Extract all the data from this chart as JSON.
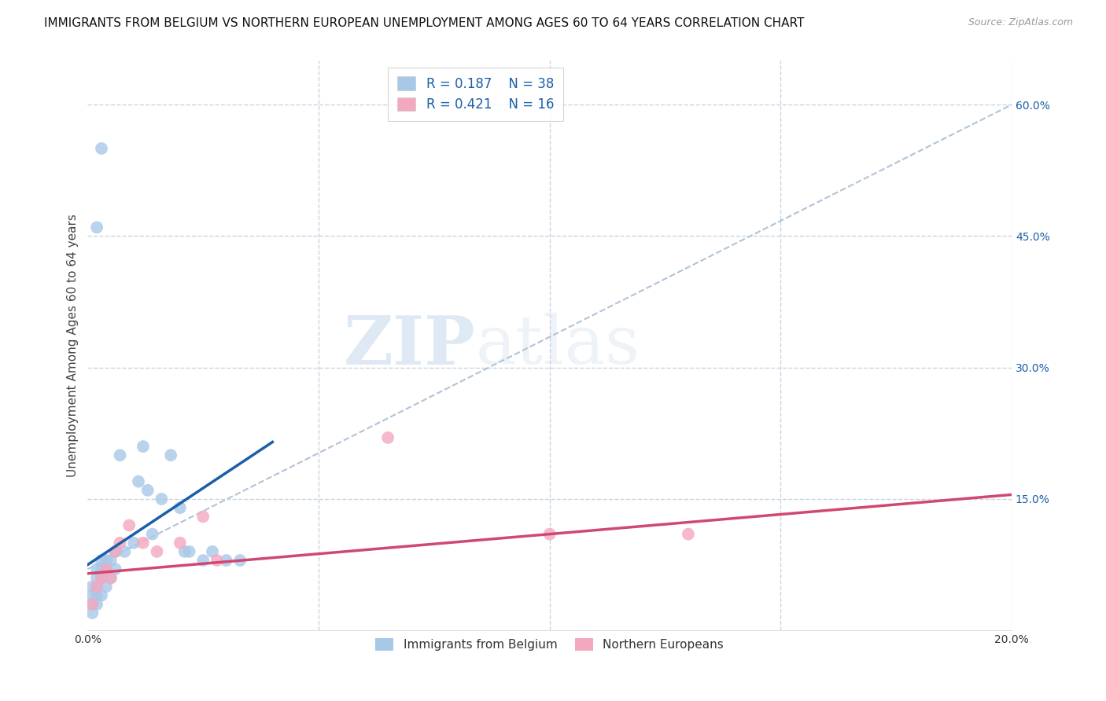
{
  "title": "IMMIGRANTS FROM BELGIUM VS NORTHERN EUROPEAN UNEMPLOYMENT AMONG AGES 60 TO 64 YEARS CORRELATION CHART",
  "source": "Source: ZipAtlas.com",
  "ylabel": "Unemployment Among Ages 60 to 64 years",
  "xlim": [
    0.0,
    0.2
  ],
  "ylim": [
    0.0,
    0.65
  ],
  "xtick_vals": [
    0.0,
    0.05,
    0.1,
    0.15,
    0.2
  ],
  "xtick_labels": [
    "0.0%",
    "",
    "",
    "",
    "20.0%"
  ],
  "yticks_right": [
    0.15,
    0.3,
    0.45,
    0.6
  ],
  "ytick_right_labels": [
    "15.0%",
    "30.0%",
    "45.0%",
    "60.0%"
  ],
  "legend_r1": "0.187",
  "legend_n1": "38",
  "legend_r2": "0.421",
  "legend_n2": "16",
  "color_blue": "#a8c8e8",
  "color_pink": "#f4a8c0",
  "line_color_blue": "#1a5fa8",
  "line_color_pink": "#d04870",
  "line_color_dashed": "#b0c4d8",
  "watermark_zip": "ZIP",
  "watermark_atlas": "atlas",
  "background_color": "#ffffff",
  "grid_color": "#c8d4e4",
  "title_fontsize": 11,
  "axis_label_fontsize": 11,
  "tick_fontsize": 10,
  "legend_fontsize": 12,
  "blue_x": [
    0.001,
    0.001,
    0.001,
    0.001,
    0.002,
    0.002,
    0.002,
    0.002,
    0.002,
    0.003,
    0.003,
    0.003,
    0.003,
    0.004,
    0.004,
    0.004,
    0.005,
    0.005,
    0.006,
    0.006,
    0.007,
    0.008,
    0.01,
    0.011,
    0.012,
    0.013,
    0.014,
    0.016,
    0.018,
    0.02,
    0.021,
    0.022,
    0.025,
    0.027,
    0.03,
    0.033,
    0.002,
    0.003
  ],
  "blue_y": [
    0.02,
    0.03,
    0.04,
    0.05,
    0.03,
    0.04,
    0.05,
    0.06,
    0.07,
    0.04,
    0.06,
    0.07,
    0.08,
    0.05,
    0.07,
    0.08,
    0.06,
    0.08,
    0.07,
    0.09,
    0.2,
    0.09,
    0.1,
    0.17,
    0.21,
    0.16,
    0.11,
    0.15,
    0.2,
    0.14,
    0.09,
    0.09,
    0.08,
    0.09,
    0.08,
    0.08,
    0.46,
    0.55
  ],
  "pink_x": [
    0.001,
    0.002,
    0.003,
    0.004,
    0.005,
    0.006,
    0.007,
    0.009,
    0.012,
    0.015,
    0.02,
    0.025,
    0.028,
    0.065,
    0.1,
    0.13
  ],
  "pink_y": [
    0.03,
    0.05,
    0.06,
    0.07,
    0.06,
    0.09,
    0.1,
    0.12,
    0.1,
    0.09,
    0.1,
    0.13,
    0.08,
    0.22,
    0.11,
    0.11
  ],
  "blue_line_x0": 0.0,
  "blue_line_y0": 0.075,
  "blue_line_x1": 0.04,
  "blue_line_y1": 0.215,
  "pink_line_x0": 0.0,
  "pink_line_y0": 0.065,
  "pink_line_x1": 0.2,
  "pink_line_y1": 0.155,
  "dash_line_x0": 0.0,
  "dash_line_y0": 0.07,
  "dash_line_x1": 0.2,
  "dash_line_y1": 0.6
}
